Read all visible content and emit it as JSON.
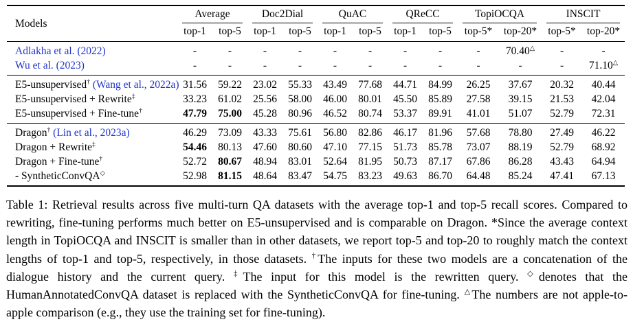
{
  "colors": {
    "citation": "#2233cc",
    "text": "#000000",
    "rule": "#000000"
  },
  "table": {
    "models_header": "Models",
    "groups": [
      {
        "label": "Average",
        "subs": [
          "top-1",
          "top-5"
        ]
      },
      {
        "label": "Doc2Dial",
        "subs": [
          "top-1",
          "top-5"
        ]
      },
      {
        "label": "QuAC",
        "subs": [
          "top-1",
          "top-5"
        ]
      },
      {
        "label": "QReCC",
        "subs": [
          "top-1",
          "top-5"
        ]
      },
      {
        "label": "TopiOCQA",
        "subs": [
          "top-5*",
          "top-20*"
        ]
      },
      {
        "label": "INSCIT",
        "subs": [
          "top-5*",
          "top-20*"
        ]
      }
    ],
    "row_groups": [
      {
        "rows": [
          {
            "model": [
              {
                "t": "Adlakha et al. (2022)",
                "cite": true
              }
            ],
            "cells": [
              "-",
              "-",
              "-",
              "-",
              "-",
              "-",
              "-",
              "-",
              "-",
              {
                "t": "70.40",
                "sup": "△"
              },
              "-",
              "-"
            ]
          },
          {
            "model": [
              {
                "t": "Wu et al. (2023)",
                "cite": true
              }
            ],
            "cells": [
              "-",
              "-",
              "-",
              "-",
              "-",
              "-",
              "-",
              "-",
              "-",
              "-",
              "-",
              {
                "t": "71.10",
                "sup": "△"
              }
            ]
          }
        ]
      },
      {
        "rows": [
          {
            "model": [
              {
                "t": "E5-unsupervised"
              },
              {
                "t": "†",
                "sup": true
              },
              {
                "t": " "
              },
              {
                "t": "(Wang et al., 2022a)",
                "cite": true
              }
            ],
            "cells": [
              "31.56",
              "59.22",
              "23.02",
              "55.33",
              "43.49",
              "77.68",
              "44.71",
              "84.99",
              "26.25",
              "37.67",
              "20.32",
              "40.44"
            ]
          },
          {
            "model": [
              {
                "t": "E5-unsupervised + Rewrite"
              },
              {
                "t": "‡",
                "sup": true
              }
            ],
            "cells": [
              "33.23",
              "61.02",
              "25.56",
              "58.00",
              "46.00",
              "80.01",
              "45.50",
              "85.89",
              "27.58",
              "39.15",
              "21.53",
              "42.04"
            ]
          },
          {
            "model": [
              {
                "t": "E5-unsupervised + Fine-tune"
              },
              {
                "t": "†",
                "sup": true
              }
            ],
            "cells": [
              {
                "t": "47.79",
                "bold": true
              },
              {
                "t": "75.00",
                "bold": true
              },
              "45.28",
              "80.96",
              "46.52",
              "80.74",
              "53.37",
              "89.91",
              "41.01",
              "51.07",
              "52.79",
              "72.31"
            ]
          }
        ]
      },
      {
        "rows": [
          {
            "model": [
              {
                "t": "Dragon"
              },
              {
                "t": "†",
                "sup": true
              },
              {
                "t": " "
              },
              {
                "t": "(Lin et al., 2023a)",
                "cite": true
              }
            ],
            "cells": [
              "46.29",
              "73.09",
              "43.33",
              "75.61",
              "56.80",
              "82.86",
              "46.17",
              "81.96",
              "57.68",
              "78.80",
              "27.49",
              "46.22"
            ]
          },
          {
            "model": [
              {
                "t": "Dragon + Rewrite"
              },
              {
                "t": "‡",
                "sup": true
              }
            ],
            "cells": [
              {
                "t": "54.46",
                "bold": true
              },
              "80.13",
              "47.60",
              "80.60",
              "47.10",
              "77.15",
              "51.73",
              "85.78",
              "73.07",
              "88.19",
              "52.79",
              "68.92"
            ]
          },
          {
            "model": [
              {
                "t": "Dragon + Fine-tune"
              },
              {
                "t": "†",
                "sup": true
              }
            ],
            "cells": [
              "52.72",
              {
                "t": "80.67",
                "bold": true
              },
              "48.94",
              "83.01",
              "52.64",
              "81.95",
              "50.73",
              "87.17",
              "67.86",
              "86.28",
              "43.43",
              "64.94"
            ]
          },
          {
            "model": [
              {
                "t": "- SyntheticConvQA"
              },
              {
                "t": "◇",
                "sup": true
              }
            ],
            "cells": [
              "52.98",
              {
                "t": "81.15",
                "bold": true
              },
              "48.64",
              "83.47",
              "54.75",
              "83.23",
              "49.63",
              "86.70",
              "64.48",
              "85.24",
              "47.41",
              "67.13"
            ]
          }
        ]
      }
    ]
  },
  "caption": {
    "parts": [
      {
        "t": "Table 1: Retrieval results across five multi-turn QA datasets with the average top-1 and top-5 recall scores. Compared to rewriting, fine-tuning performs much better on E5-unsupervised and is comparable on Dragon. *Since the average context length in TopiOCQA and INSCIT is smaller than in other datasets, we report top-5 and top-20 to roughly match the context lengths of top-1 and top-5, respectively, in those datasets. "
      },
      {
        "t": "†",
        "sup": true
      },
      {
        "t": "The inputs for these two models are a concatenation of the dialogue history and the current query. "
      },
      {
        "t": "‡",
        "sup": true
      },
      {
        "t": "The input for this model is the rewritten query. "
      },
      {
        "t": "◇",
        "sup": true
      },
      {
        "t": "denotes that the HumanAnnotatedConvQA dataset is replaced with the SyntheticConvQA for fine-tuning. "
      },
      {
        "t": "△",
        "sup": true
      },
      {
        "t": "The numbers are not apple-to-apple comparison (e.g., they use the training set for fine-tuning)."
      }
    ]
  }
}
